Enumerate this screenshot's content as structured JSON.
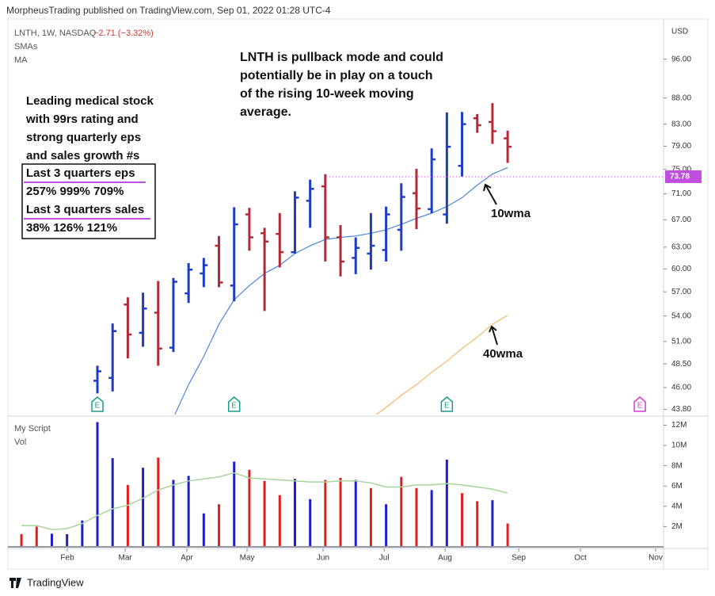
{
  "header": "MorpheusTrading published on TradingView.com, Sep 01, 2022 01:28 UTC-4",
  "footer": "TradingView",
  "chart_data": [
    {
      "type": "ohlc",
      "symbol": "LNTH, 1W, NASDAQ",
      "change": "−2.71 (−3.32%)",
      "indicator_label": "SMAs",
      "indicator_label_2": "MA",
      "currency": "USD",
      "log_scale": true,
      "grid": false,
      "up_color": "#1e3cc4",
      "down_color": "#b22a36",
      "categories": [
        null,
        null,
        null,
        null,
        null,
        null,
        null,
        null,
        null,
        null,
        null,
        null,
        null,
        null,
        null,
        null,
        null,
        null,
        null,
        null,
        null,
        null,
        null,
        null,
        null,
        null,
        null,
        null,
        null,
        null,
        null,
        null,
        null
      ],
      "open": [
        null,
        null,
        null,
        null,
        null,
        46.7,
        47.0,
        55.4,
        52.0,
        54.4,
        50.3,
        56.8,
        59.4,
        63.2,
        57.8,
        67.8,
        65.0,
        64.9,
        62.3,
        69.9,
        72.2,
        64.4,
        61.5,
        62.1,
        62.6,
        65.5,
        71.1,
        68.6,
        67.8,
        75.6,
        84.1,
        83.4,
        80.4
      ],
      "high": [
        null,
        null,
        null,
        null,
        null,
        48.3,
        53.1,
        56.3,
        56.9,
        58.4,
        58.8,
        60.8,
        61.5,
        64.6,
        68.9,
        68.8,
        65.8,
        68.0,
        71.4,
        73.3,
        74.2,
        66.2,
        64.4,
        68.0,
        69.0,
        72.7,
        75.1,
        78.6,
        85.2,
        85.3,
        84.9,
        87.0,
        81.8
      ],
      "low": [
        null,
        null,
        null,
        null,
        null,
        45.4,
        45.6,
        49.1,
        50.4,
        48.3,
        49.8,
        55.6,
        57.6,
        57.6,
        55.8,
        62.5,
        54.6,
        60.2,
        62.1,
        65.8,
        61.0,
        59.0,
        59.3,
        59.9,
        61.0,
        62.5,
        65.6,
        68.0,
        66.4,
        73.8,
        81.4,
        79.4,
        76.1
      ],
      "close": [
        null,
        null,
        null,
        null,
        null,
        47.7,
        52.2,
        51.8,
        54.9,
        50.2,
        58.3,
        59.9,
        60.5,
        58.2,
        66.3,
        64.4,
        63.8,
        62.3,
        70.4,
        71.8,
        64.4,
        61.0,
        62.9,
        63.2,
        67.8,
        70.5,
        68.7,
        76.7,
        78.9,
        83.0,
        82.8,
        81.7,
        78.9
      ],
      "series": [
        {
          "color": "#4a86e0",
          "values": [
            null,
            null,
            null,
            null,
            null,
            null,
            null,
            null,
            null,
            null,
            43.0,
            46.3,
            49.3,
            53.0,
            56.0,
            57.8,
            59.4,
            60.5,
            62.1,
            63.2,
            64.1,
            64.4,
            64.6,
            65.0,
            65.5,
            66.3,
            67.2,
            68.0,
            69.0,
            70.4,
            72.4,
            74.2,
            75.3
          ]
        },
        {
          "color": "#f5b963",
          "values": [
            null,
            null,
            null,
            null,
            null,
            null,
            null,
            null,
            null,
            null,
            null,
            null,
            null,
            null,
            null,
            null,
            null,
            null,
            null,
            null,
            null,
            null,
            null,
            42.9,
            44.0,
            45.2,
            46.3,
            47.6,
            48.8,
            50.2,
            51.5,
            53.0,
            54.1
          ]
        }
      ],
      "hline": {
        "value": 73.78,
        "label": "73.78",
        "color": "#c04fe0"
      },
      "earnings": {
        "label": "E",
        "x": [
          5,
          14,
          28,
          40.7
        ],
        "colors": [
          "#1a9a88",
          "#1a9a88",
          "#1a9a88",
          "#d23bd6"
        ]
      },
      "xlim": [
        -0.89,
        42.26
      ],
      "ylim": [
        43.3,
        104.3
      ],
      "yticks": [
        {
          "value": 43.8,
          "label": "43.80"
        },
        {
          "value": 46,
          "label": "46.00"
        },
        {
          "value": 48.5,
          "label": "48.50"
        },
        {
          "value": 51,
          "label": "51.00"
        },
        {
          "value": 54,
          "label": "54.00"
        },
        {
          "value": 57,
          "label": "57.00"
        },
        {
          "value": 60,
          "label": "60.00"
        },
        {
          "value": 63,
          "label": "63.00"
        },
        {
          "value": 67,
          "label": "67.00"
        },
        {
          "value": 71,
          "label": "71.00"
        },
        {
          "value": 75,
          "label": "75.00"
        },
        {
          "value": 79,
          "label": "79.00"
        },
        {
          "value": 83,
          "label": "83.00"
        },
        {
          "value": 88,
          "label": "88.00"
        },
        {
          "value": 96,
          "label": "96.00"
        }
      ],
      "annotation": [
        "LNTH is pullback mode and could",
        "potentially be in play on a touch",
        "of the rising 10-week moving",
        "average."
      ],
      "notes": [
        "Leading medical stock",
        "with 99rs rating and",
        "strong quarterly eps",
        "and sales growth #s"
      ],
      "box": [
        "Last 3 quarters eps",
        "257% 999% 709%",
        "Last 3 quarters sales",
        "38% 126% 121%"
      ],
      "label_10wma": "10wma",
      "label_40wma": "40wma"
    },
    {
      "type": "bar",
      "title": "My Script",
      "subtitle": "Vol",
      "grid": false,
      "categories": [
        null,
        null,
        null,
        null,
        null,
        null,
        null,
        null,
        null,
        null,
        null,
        null,
        null,
        null,
        null,
        null,
        null,
        null,
        null,
        null,
        null,
        null,
        null,
        null,
        null,
        null,
        null,
        null,
        null,
        null,
        null,
        null,
        null
      ],
      "values": [
        1250000,
        2000000,
        1300000,
        1250000,
        2600000,
        12300000,
        8750000,
        6100000,
        7800000,
        8800000,
        6600000,
        7000000,
        3300000,
        4200000,
        8400000,
        7600000,
        6500000,
        5100000,
        6700000,
        4700000,
        6600000,
        6800000,
        6600000,
        5800000,
        4200000,
        6900000,
        5800000,
        5600000,
        8600000,
        5300000,
        4500000,
        4600000,
        2300000
      ],
      "colors": [
        "#e01e1e",
        "#e01e1e",
        "#1f1fc8",
        "#1f1fc8",
        "#1f1fc8",
        "#1f1fc8",
        "#1f1fc8",
        "#e01e1e",
        "#1f1fc8",
        "#e01e1e",
        "#1f1fc8",
        "#1f1fc8",
        "#1f1fc8",
        "#e01e1e",
        "#1f1fc8",
        "#e01e1e",
        "#e01e1e",
        "#e01e1e",
        "#1f1fc8",
        "#1f1fc8",
        "#e01e1e",
        "#e01e1e",
        "#1f1fc8",
        "#e01e1e",
        "#1f1fc8",
        "#e01e1e",
        "#e01e1e",
        "#1f1fc8",
        "#1f1fc8",
        "#e01e1e",
        "#e01e1e",
        "#1f1fc8",
        "#e01e1e"
      ],
      "series": [
        {
          "color": "#a8d4a0",
          "values": [
            2100000,
            2100000,
            1700000,
            1800000,
            2300000,
            3100000,
            3750000,
            4100000,
            4800000,
            5600000,
            6100000,
            6500000,
            6700000,
            6900000,
            7300000,
            6800000,
            6700000,
            6600000,
            6500000,
            6400000,
            6400000,
            6500000,
            6500000,
            6300000,
            5900000,
            5900000,
            6100000,
            6100000,
            6250000,
            6100000,
            5900000,
            5700000,
            5300000
          ]
        }
      ],
      "xlim": [
        -0.89,
        42.26
      ],
      "ylim": [
        0,
        12660000
      ],
      "yticks": [
        {
          "value": 2000000,
          "label": "2M"
        },
        {
          "value": 4000000,
          "label": "4M"
        },
        {
          "value": 6000000,
          "label": "6M"
        },
        {
          "value": 8000000,
          "label": "8M"
        },
        {
          "value": 10000000,
          "label": "10M"
        },
        {
          "value": 12000000,
          "label": "12M"
        }
      ],
      "xticks": [
        {
          "value": 3.02,
          "label": "Feb"
        },
        {
          "value": 6.83,
          "label": "Mar"
        },
        {
          "value": 10.89,
          "label": "Apr"
        },
        {
          "value": 14.85,
          "label": "May"
        },
        {
          "value": 19.85,
          "label": "Jun"
        },
        {
          "value": 23.87,
          "label": "Jul"
        },
        {
          "value": 27.88,
          "label": "Aug"
        },
        {
          "value": 32.73,
          "label": "Sep"
        },
        {
          "value": 36.79,
          "label": "Oct"
        },
        {
          "value": 41.74,
          "label": "Nov"
        }
      ]
    }
  ]
}
